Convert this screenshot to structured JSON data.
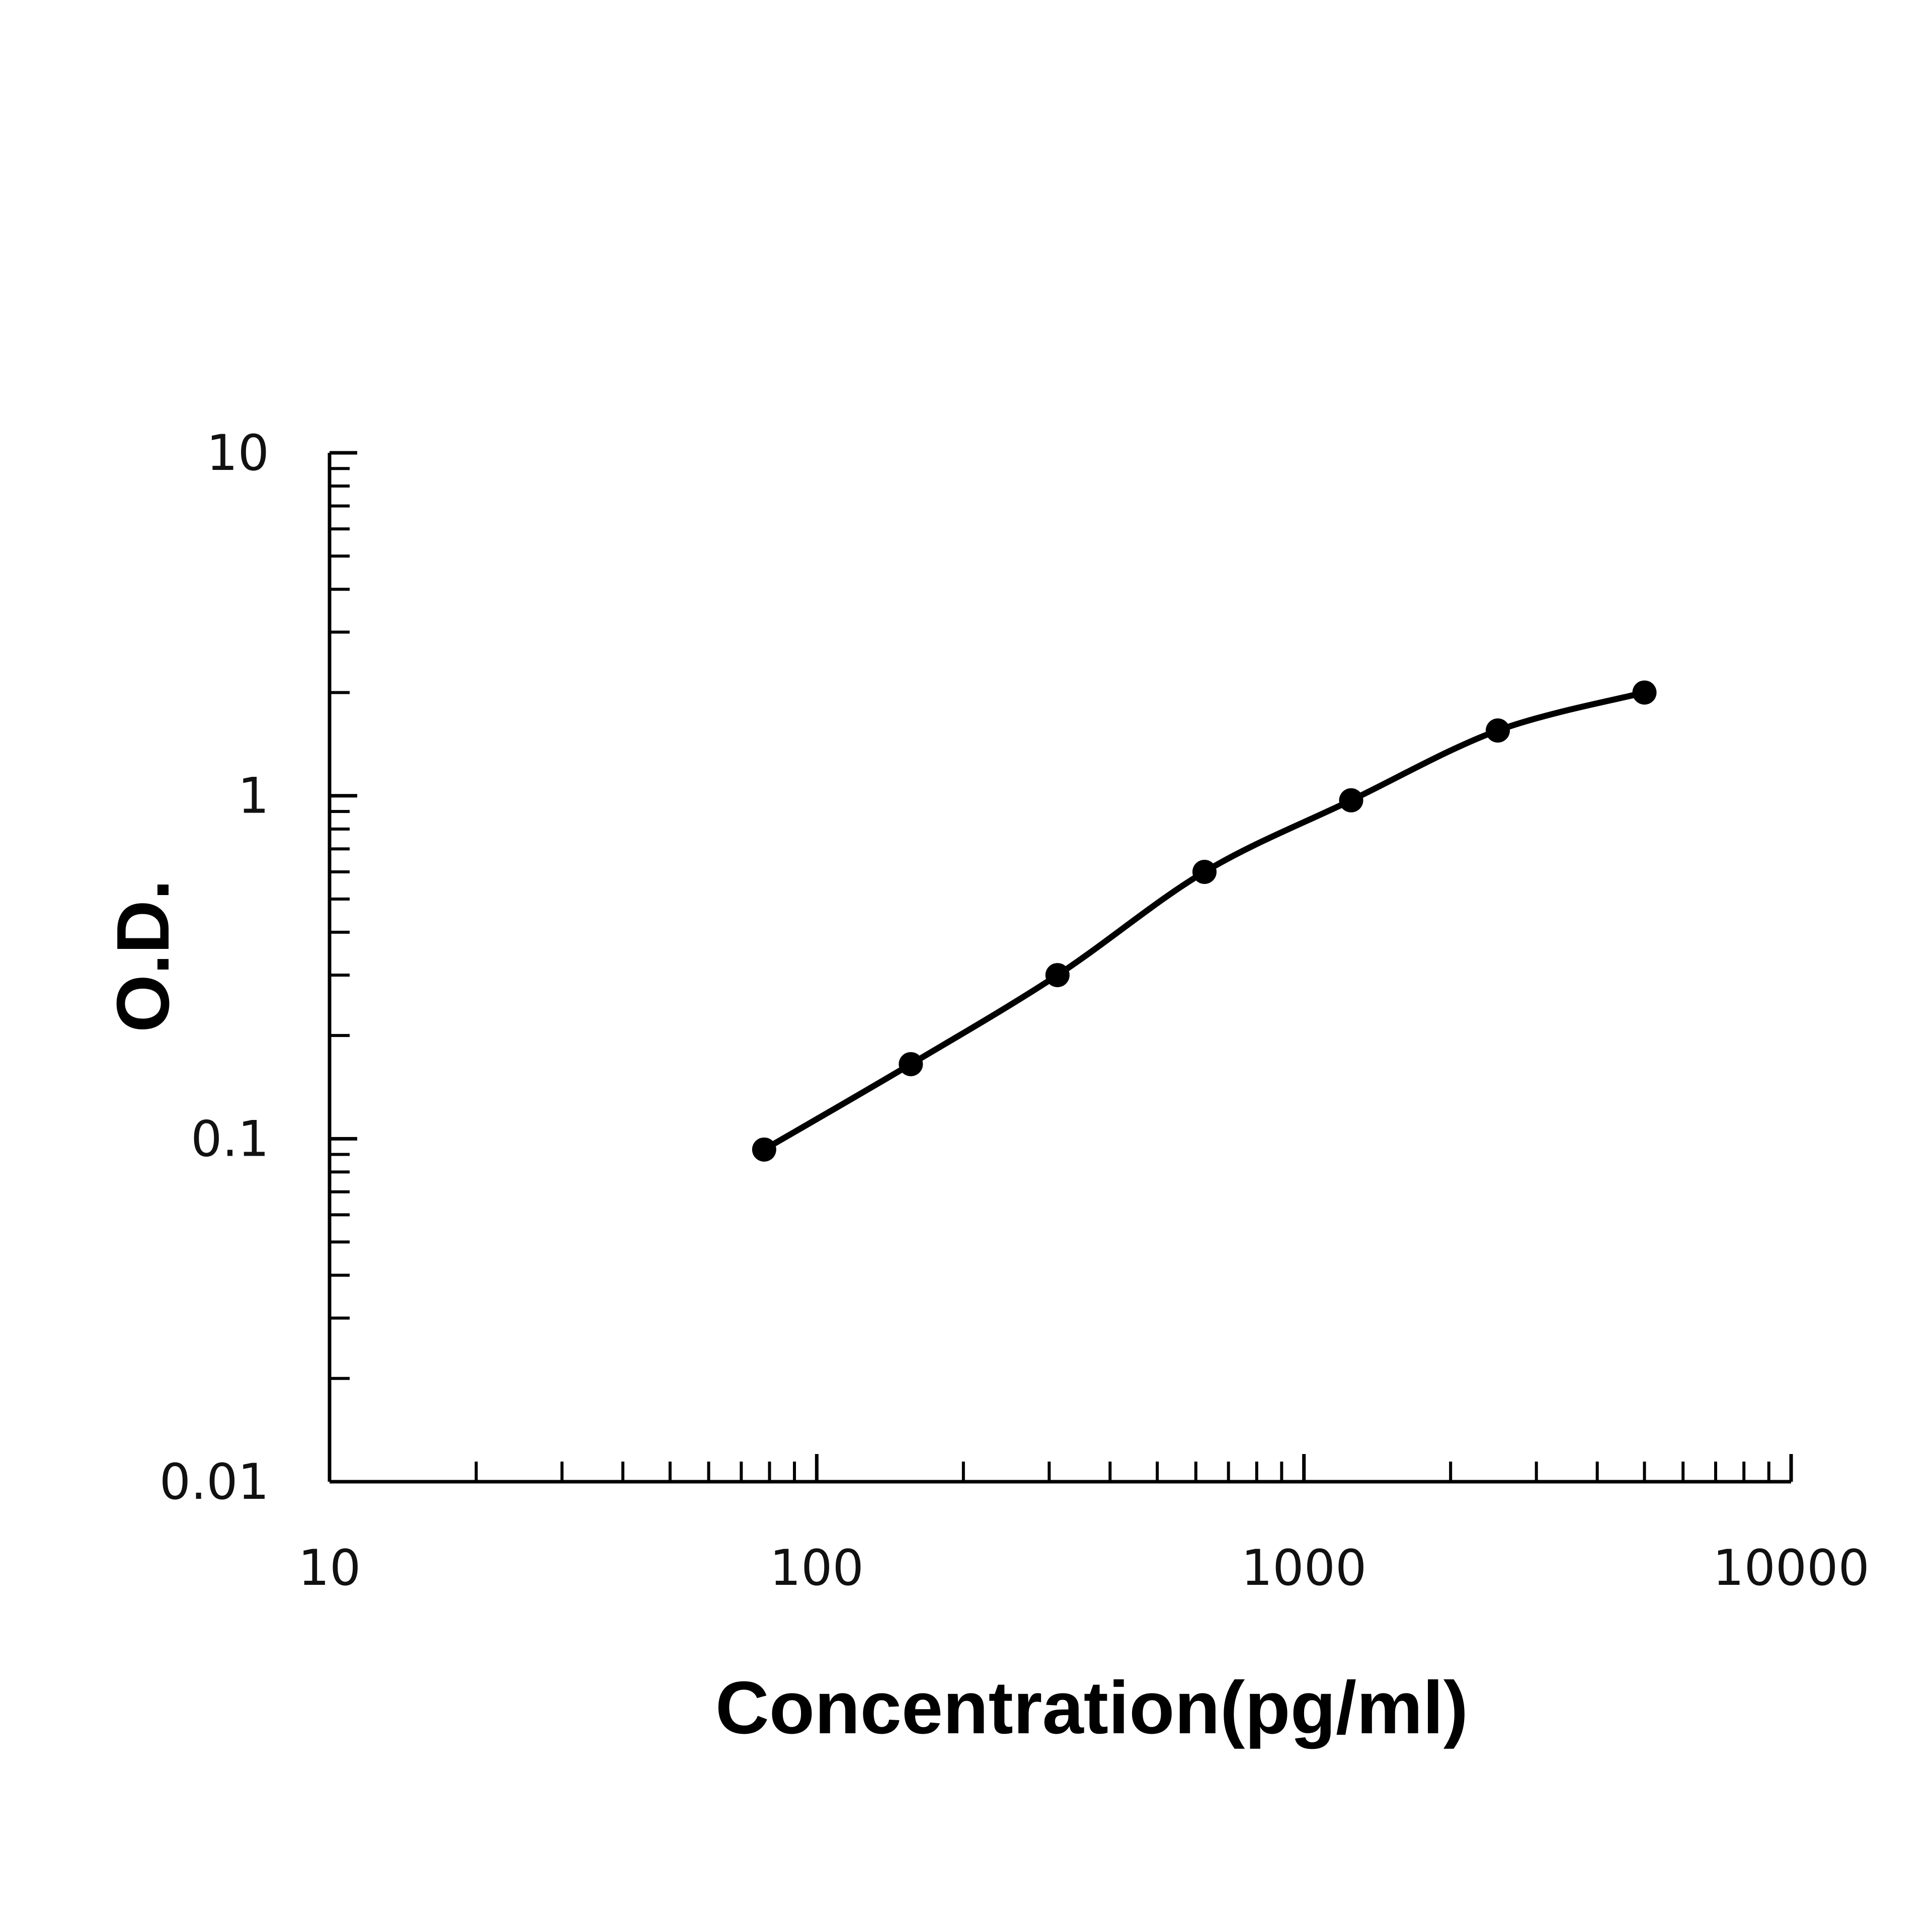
{
  "chart_data": {
    "type": "line",
    "title": "",
    "xlabel": "Concentration(pg/ml)",
    "ylabel": "O.D.",
    "x_scale": "log",
    "y_scale": "log",
    "xlim": [
      10,
      10000
    ],
    "ylim": [
      0.01,
      10
    ],
    "x_ticks": [
      "10",
      "100",
      "1000",
      "10000"
    ],
    "y_ticks": [
      "0.01",
      "0.1",
      "1",
      "10"
    ],
    "grid": false,
    "legend": "none",
    "colors": {
      "axis": "#000000",
      "curve": "#000000",
      "points": "#000000",
      "text": "#111111"
    },
    "series": [
      {
        "markers": "filled-circle",
        "curve": "smooth-fit",
        "points": [
          {
            "x": 78,
            "y": 0.093
          },
          {
            "x": 156,
            "y": 0.165
          },
          {
            "x": 312,
            "y": 0.3
          },
          {
            "x": 625,
            "y": 0.6
          },
          {
            "x": 1250,
            "y": 0.97
          },
          {
            "x": 2500,
            "y": 1.55
          },
          {
            "x": 5000,
            "y": 2.0
          }
        ]
      }
    ]
  }
}
